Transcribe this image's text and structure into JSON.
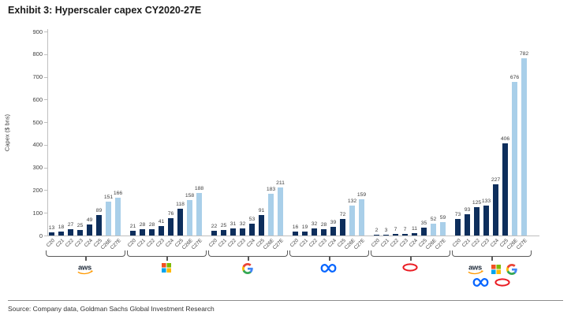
{
  "title": "Exhibit 3: Hyperscaler capex CY2020-27E",
  "source": "Source: Company data, Goldman Sachs Global Investment Research",
  "chart_data": {
    "type": "bar",
    "title": "Exhibit 3: Hyperscaler capex CY2020-27E",
    "ylabel": "Capex ($ bns)",
    "ylim": [
      0,
      900
    ],
    "yticks": [
      0,
      100,
      200,
      300,
      400,
      500,
      600,
      700,
      800,
      900
    ],
    "grid": false,
    "legend": "none",
    "categories": [
      "C20",
      "C21",
      "C22",
      "C23",
      "C24",
      "C25",
      "C26E",
      "C27E"
    ],
    "estimate_from_index": 6,
    "colors": {
      "actual_bar": "#0D2E5C",
      "estimate_bar": "#A9CFE9",
      "axis": "#BFBFBF",
      "label_text": "#404040"
    },
    "groups": [
      {
        "label": "aws",
        "logos": [
          "aws"
        ],
        "values": [
          13,
          18,
          27,
          25,
          49,
          89,
          151,
          166
        ]
      },
      {
        "label": "microsoft",
        "logos": [
          "microsoft"
        ],
        "values": [
          21,
          28,
          28,
          41,
          76,
          118,
          158,
          188
        ]
      },
      {
        "label": "google",
        "logos": [
          "google"
        ],
        "values": [
          22,
          25,
          31,
          32,
          53,
          91,
          183,
          211
        ]
      },
      {
        "label": "meta",
        "logos": [
          "meta"
        ],
        "values": [
          16,
          19,
          32,
          28,
          39,
          72,
          132,
          159
        ]
      },
      {
        "label": "oracle",
        "logos": [
          "oracle"
        ],
        "values": [
          2,
          3,
          7,
          7,
          11,
          35,
          52,
          59
        ]
      },
      {
        "label": "total",
        "logos": [
          "aws",
          "microsoft",
          "google",
          "meta",
          "oracle"
        ],
        "values": [
          73,
          93,
          125,
          133,
          227,
          406,
          676,
          782
        ]
      }
    ]
  }
}
